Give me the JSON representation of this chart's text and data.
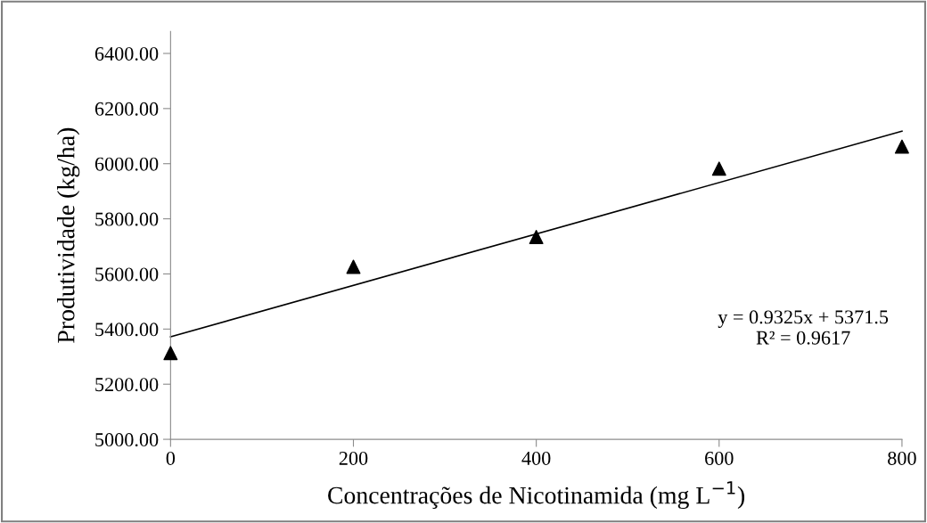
{
  "chart_data": {
    "type": "scatter",
    "xlabel": "Concentrações de Nicotinamida (mg L$^{−1}$)",
    "ylabel": "Produtividade (kg/ha)",
    "xlim": [
      0,
      800
    ],
    "xticks": [
      0,
      200,
      400,
      600,
      800
    ],
    "ylim": [
      5000,
      6480
    ],
    "yticks": [
      {
        "value": 5000,
        "label": "5000.00"
      },
      {
        "value": 5200,
        "label": "5200.00"
      },
      {
        "value": 5400,
        "label": "5400.00"
      },
      {
        "value": 5600,
        "label": "5600.00"
      },
      {
        "value": 5800,
        "label": "5800.00"
      },
      {
        "value": 6000,
        "label": "6000.00"
      },
      {
        "value": 6200,
        "label": "6200.00"
      },
      {
        "value": 6400,
        "label": "6400.00"
      }
    ],
    "grid": false,
    "series": [
      {
        "color": "#000000",
        "marker": "triangle",
        "x": [
          0,
          200,
          400,
          600,
          800
        ],
        "values": [
          5313,
          5626,
          5734,
          5982,
          6062
        ]
      },
      {
        "type": "line",
        "color": "#000000",
        "marker": "none",
        "line_style": "solid",
        "x": [
          0,
          800
        ],
        "values": [
          5372,
          6118
        ]
      }
    ],
    "annotations": [
      "y = 0.9325x + 5371.5\nR² = 0.9617"
    ]
  }
}
